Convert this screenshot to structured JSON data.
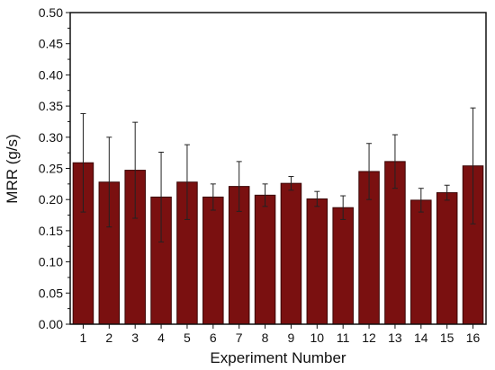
{
  "chart_data": {
    "type": "bar",
    "title": "",
    "xlabel": "Experiment Number",
    "ylabel": "MRR (g/s)",
    "ylim": [
      0,
      0.5
    ],
    "yticks": [
      "0.00",
      "0.05",
      "0.10",
      "0.15",
      "0.20",
      "0.25",
      "0.30",
      "0.35",
      "0.40",
      "0.45",
      "0.50"
    ],
    "categories": [
      "1",
      "2",
      "3",
      "4",
      "5",
      "6",
      "7",
      "8",
      "9",
      "10",
      "11",
      "12",
      "13",
      "14",
      "15",
      "16"
    ],
    "values": [
      0.259,
      0.228,
      0.247,
      0.204,
      0.228,
      0.204,
      0.221,
      0.207,
      0.226,
      0.201,
      0.187,
      0.245,
      0.261,
      0.199,
      0.211,
      0.254
    ],
    "error_upper": [
      0.338,
      0.3,
      0.324,
      0.276,
      0.288,
      0.225,
      0.261,
      0.225,
      0.237,
      0.213,
      0.206,
      0.29,
      0.304,
      0.218,
      0.223,
      0.347
    ],
    "error_lower": [
      0.18,
      0.156,
      0.17,
      0.132,
      0.168,
      0.183,
      0.181,
      0.189,
      0.215,
      0.189,
      0.168,
      0.2,
      0.218,
      0.18,
      0.199,
      0.161
    ],
    "bar_color": "#7a1010",
    "grid": false
  }
}
